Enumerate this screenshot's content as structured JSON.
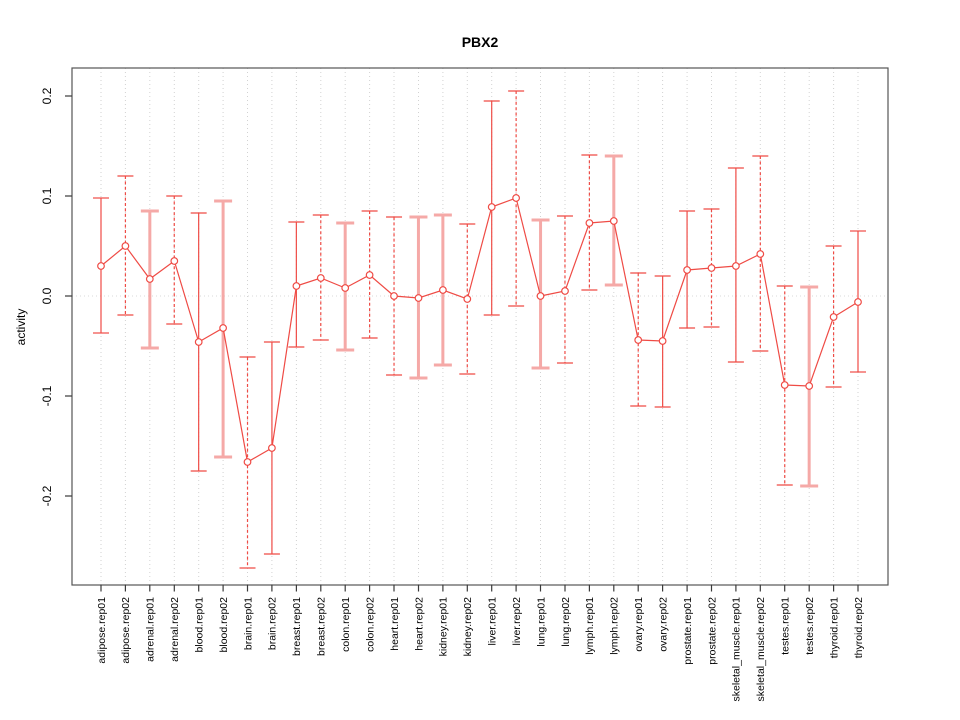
{
  "figure": {
    "title": "PBX2"
  },
  "colors": {
    "series": "#ef4b45",
    "series_light": "#f5a9a7",
    "grid": "#d2d2d2",
    "zero_line": "#d8d8d8",
    "axis": "#3a3a3a",
    "border": "#555555",
    "text": "#000000",
    "background": "#ffffff"
  },
  "chart_data": {
    "type": "scatter",
    "subtype": "points-with-error-bars-connected-by-line",
    "title": "PBX2",
    "xlabel": "",
    "ylabel": "activity",
    "ylim": [
      -0.289,
      0.228
    ],
    "yticks": [
      0.2,
      0.1,
      0.0,
      -0.1,
      -0.2
    ],
    "grid": "dotted vertical line at each category; dotted horizontal line at y=0",
    "legend": "none",
    "categories": [
      "adipose.rep01",
      "adipose.rep02",
      "adrenal.rep01",
      "adrenal.rep02",
      "blood.rep01",
      "blood.rep02",
      "brain.rep01",
      "brain.rep02",
      "breast.rep01",
      "breast.rep02",
      "colon.rep01",
      "colon.rep02",
      "heart.rep01",
      "heart.rep02",
      "kidney.rep01",
      "kidney.rep02",
      "liver.rep01",
      "liver.rep02",
      "lung.rep01",
      "lung.rep02",
      "lymph.rep01",
      "lymph.rep02",
      "ovary.rep01",
      "ovary.rep02",
      "prostate.rep01",
      "prostate.rep02",
      "skeletal_muscle.rep01",
      "skeletal_muscle.rep02",
      "testes.rep01",
      "testes.rep02",
      "thyroid.rep01",
      "thyroid.rep02"
    ],
    "points": [
      {
        "label": "adipose.rep01",
        "value": 0.03,
        "lo": -0.037,
        "hi": 0.098,
        "style": "solid"
      },
      {
        "label": "adipose.rep02",
        "value": 0.05,
        "lo": -0.019,
        "hi": 0.12,
        "style": "dashed"
      },
      {
        "label": "adrenal.rep01",
        "value": 0.017,
        "lo": -0.052,
        "hi": 0.085,
        "style": "thick"
      },
      {
        "label": "adrenal.rep02",
        "value": 0.035,
        "lo": -0.028,
        "hi": 0.1,
        "style": "dashed"
      },
      {
        "label": "blood.rep01",
        "value": -0.046,
        "lo": -0.175,
        "hi": 0.083,
        "style": "solid"
      },
      {
        "label": "blood.rep02",
        "value": -0.032,
        "lo": -0.161,
        "hi": 0.095,
        "style": "thick"
      },
      {
        "label": "brain.rep01",
        "value": -0.166,
        "lo": -0.272,
        "hi": -0.061,
        "style": "dashed"
      },
      {
        "label": "brain.rep02",
        "value": -0.152,
        "lo": -0.258,
        "hi": -0.046,
        "style": "solid"
      },
      {
        "label": "breast.rep01",
        "value": 0.01,
        "lo": -0.051,
        "hi": 0.074,
        "style": "solid"
      },
      {
        "label": "breast.rep02",
        "value": 0.018,
        "lo": -0.044,
        "hi": 0.081,
        "style": "dashed"
      },
      {
        "label": "colon.rep01",
        "value": 0.008,
        "lo": -0.054,
        "hi": 0.073,
        "style": "thick"
      },
      {
        "label": "colon.rep02",
        "value": 0.021,
        "lo": -0.042,
        "hi": 0.085,
        "style": "dashed"
      },
      {
        "label": "heart.rep01",
        "value": 0.0,
        "lo": -0.079,
        "hi": 0.079,
        "style": "dashed"
      },
      {
        "label": "heart.rep02",
        "value": -0.002,
        "lo": -0.082,
        "hi": 0.079,
        "style": "thick"
      },
      {
        "label": "kidney.rep01",
        "value": 0.006,
        "lo": -0.069,
        "hi": 0.081,
        "style": "thick"
      },
      {
        "label": "kidney.rep02",
        "value": -0.003,
        "lo": -0.078,
        "hi": 0.072,
        "style": "dashed"
      },
      {
        "label": "liver.rep01",
        "value": 0.089,
        "lo": -0.019,
        "hi": 0.195,
        "style": "solid"
      },
      {
        "label": "liver.rep02",
        "value": 0.098,
        "lo": -0.01,
        "hi": 0.205,
        "style": "dashed"
      },
      {
        "label": "lung.rep01",
        "value": 0.0,
        "lo": -0.072,
        "hi": 0.076,
        "style": "thick"
      },
      {
        "label": "lung.rep02",
        "value": 0.005,
        "lo": -0.067,
        "hi": 0.08,
        "style": "dashed"
      },
      {
        "label": "lymph.rep01",
        "value": 0.073,
        "lo": 0.006,
        "hi": 0.141,
        "style": "dashed"
      },
      {
        "label": "lymph.rep02",
        "value": 0.075,
        "lo": 0.011,
        "hi": 0.14,
        "style": "thick"
      },
      {
        "label": "ovary.rep01",
        "value": -0.044,
        "lo": -0.11,
        "hi": 0.023,
        "style": "dashed"
      },
      {
        "label": "ovary.rep02",
        "value": -0.045,
        "lo": -0.111,
        "hi": 0.02,
        "style": "solid"
      },
      {
        "label": "prostate.rep01",
        "value": 0.026,
        "lo": -0.032,
        "hi": 0.085,
        "style": "solid"
      },
      {
        "label": "prostate.rep02",
        "value": 0.028,
        "lo": -0.031,
        "hi": 0.087,
        "style": "dashed"
      },
      {
        "label": "skeletal_muscle.rep01",
        "value": 0.03,
        "lo": -0.066,
        "hi": 0.128,
        "style": "solid"
      },
      {
        "label": "skeletal_muscle.rep02",
        "value": 0.042,
        "lo": -0.055,
        "hi": 0.14,
        "style": "dashed"
      },
      {
        "label": "testes.rep01",
        "value": -0.089,
        "lo": -0.189,
        "hi": 0.01,
        "style": "dashed"
      },
      {
        "label": "testes.rep02",
        "value": -0.09,
        "lo": -0.19,
        "hi": 0.009,
        "style": "thick"
      },
      {
        "label": "thyroid.rep01",
        "value": -0.021,
        "lo": -0.091,
        "hi": 0.05,
        "style": "dashed"
      },
      {
        "label": "thyroid.rep02",
        "value": -0.006,
        "lo": -0.076,
        "hi": 0.065,
        "style": "solid"
      }
    ]
  }
}
